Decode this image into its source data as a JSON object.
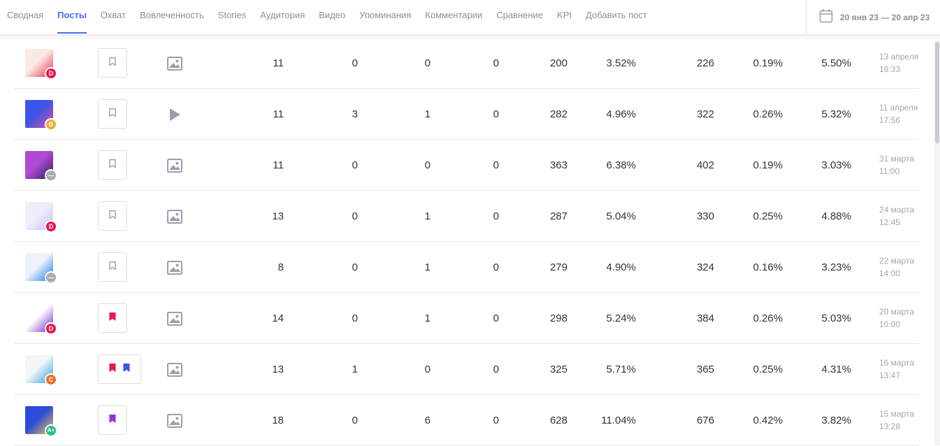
{
  "tabs": [
    {
      "label": "Сводная",
      "active": false
    },
    {
      "label": "Посты",
      "active": true
    },
    {
      "label": "Охват",
      "active": false
    },
    {
      "label": "Вовлеченность",
      "active": false
    },
    {
      "label": "Stories",
      "active": false
    },
    {
      "label": "Аудитория",
      "active": false
    },
    {
      "label": "Видео",
      "active": false
    },
    {
      "label": "Упоминания",
      "active": false
    },
    {
      "label": "Комментарии",
      "active": false
    },
    {
      "label": "Сравнение",
      "active": false
    },
    {
      "label": "KPI",
      "active": false
    },
    {
      "label": "Добавить пост",
      "active": false
    }
  ],
  "date_range": "20 янв 23 — 20 апр 23",
  "accent_color": "#4a6cf7",
  "rows": [
    {
      "badge": "D",
      "badge_color": "#e8164f",
      "bookmarks": [],
      "type": "image-icon",
      "v1": "11",
      "v2": "0",
      "v3": "0",
      "v4": "0",
      "v5": "200",
      "v6": "3.52%",
      "v7": "226",
      "v8": "0.19%",
      "v9": "5.50%",
      "date": "13 апреля",
      "time": "16:33",
      "thumb_colors": [
        "#fbe9e4",
        "#e8304a"
      ]
    },
    {
      "badge": "B",
      "badge_color": "#f2a93b",
      "bookmarks": [],
      "type": "video-icon",
      "v1": "11",
      "v2": "3",
      "v3": "1",
      "v4": "0",
      "v5": "282",
      "v6": "4.96%",
      "v7": "322",
      "v8": "0.26%",
      "v9": "5.32%",
      "date": "11 апреля",
      "time": "17:56",
      "thumb_colors": [
        "#3b55e6",
        "#e84fa0"
      ]
    },
    {
      "badge": "—",
      "badge_color": "#a9abb3",
      "bookmarks": [],
      "type": "image-icon",
      "v1": "11",
      "v2": "0",
      "v3": "0",
      "v4": "0",
      "v5": "363",
      "v6": "6.38%",
      "v7": "402",
      "v8": "0.19%",
      "v9": "3.03%",
      "date": "31 марта",
      "time": "11:00",
      "thumb_colors": [
        "#b04ad6",
        "#2a2250"
      ]
    },
    {
      "badge": "D",
      "badge_color": "#e8164f",
      "bookmarks": [],
      "type": "image-icon",
      "v1": "13",
      "v2": "0",
      "v3": "1",
      "v4": "0",
      "v5": "287",
      "v6": "5.04%",
      "v7": "330",
      "v8": "0.25%",
      "v9": "4.88%",
      "date": "24 марта",
      "time": "12:45",
      "thumb_colors": [
        "#f1eefb",
        "#c9c2ee"
      ]
    },
    {
      "badge": "—",
      "badge_color": "#a9abb3",
      "bookmarks": [],
      "type": "image-icon",
      "v1": "8",
      "v2": "0",
      "v3": "1",
      "v4": "0",
      "v5": "279",
      "v6": "4.90%",
      "v7": "324",
      "v8": "0.16%",
      "v9": "3.23%",
      "date": "22 марта",
      "time": "14:00",
      "thumb_colors": [
        "#eef3fb",
        "#1877f2"
      ]
    },
    {
      "badge": "D",
      "badge_color": "#e8164f",
      "bookmarks": [
        "#e8164f"
      ],
      "type": "image-icon",
      "v1": "14",
      "v2": "0",
      "v3": "1",
      "v4": "0",
      "v5": "298",
      "v6": "5.24%",
      "v7": "384",
      "v8": "0.26%",
      "v9": "5.03%",
      "date": "20 марта",
      "time": "10:00",
      "thumb_colors": [
        "#ffffff",
        "#6a1fc9"
      ]
    },
    {
      "badge": "C",
      "badge_color": "#f26a2e",
      "bookmarks": [
        "#e8164f",
        "#3b55e6"
      ],
      "type": "image-icon",
      "v1": "13",
      "v2": "1",
      "v3": "0",
      "v4": "0",
      "v5": "325",
      "v6": "5.71%",
      "v7": "365",
      "v8": "0.25%",
      "v9": "4.31%",
      "date": "16 марта",
      "time": "13:47",
      "thumb_colors": [
        "#f4f5f7",
        "#2aa3e0"
      ]
    },
    {
      "badge": "A+",
      "badge_color": "#1fbf8f",
      "bookmarks": [
        "#9b30d9"
      ],
      "type": "image-icon",
      "v1": "18",
      "v2": "0",
      "v3": "6",
      "v4": "0",
      "v5": "628",
      "v6": "11.04%",
      "v7": "676",
      "v8": "0.42%",
      "v9": "3.82%",
      "date": "15 марта",
      "time": "13:28",
      "thumb_colors": [
        "#2c4bd8",
        "#f2c24a"
      ]
    }
  ]
}
